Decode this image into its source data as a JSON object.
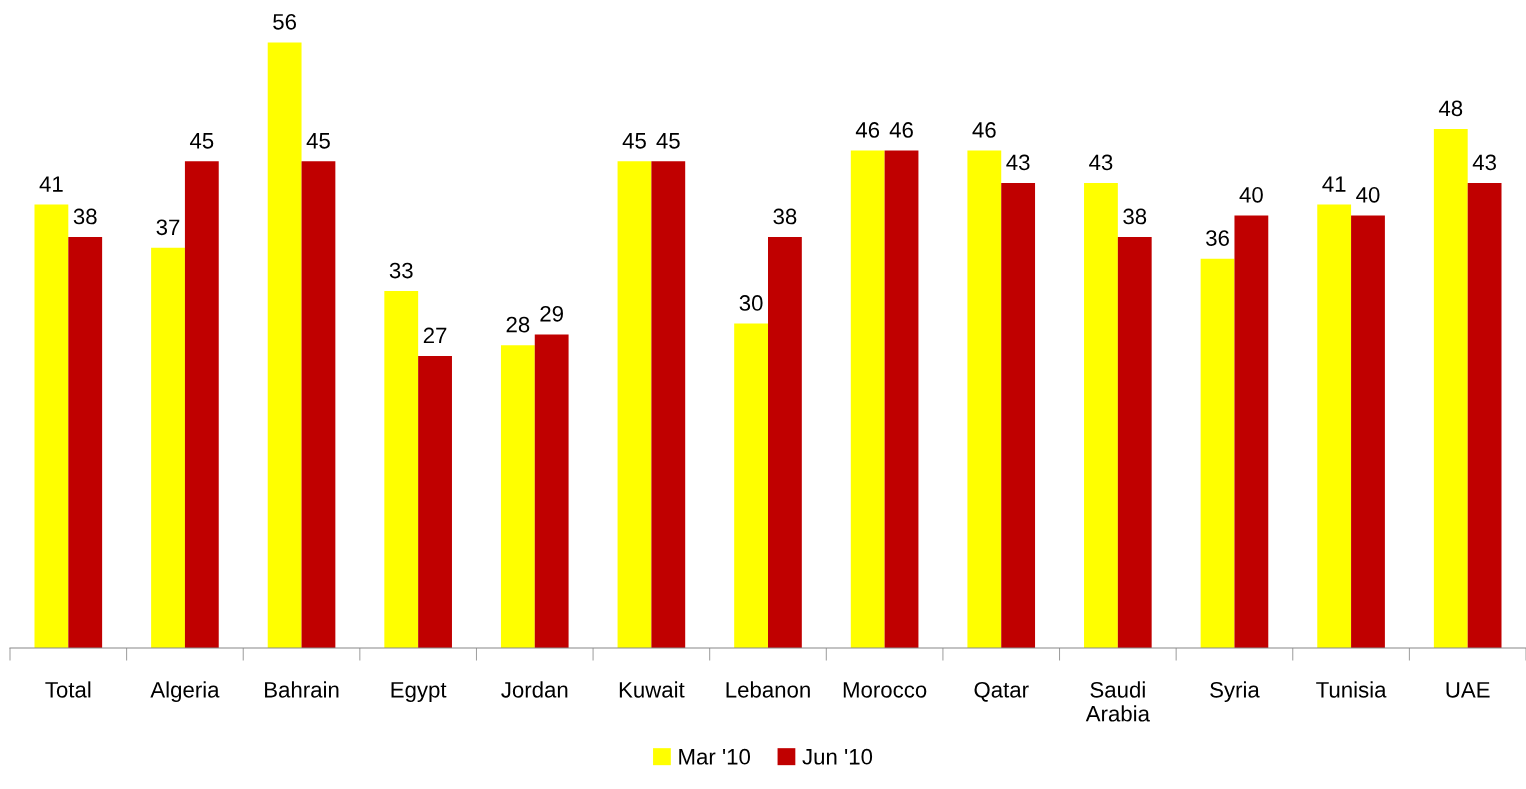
{
  "chart_data": {
    "type": "bar",
    "categories": [
      "Total",
      "Algeria",
      "Bahrain",
      "Egypt",
      "Jordan",
      "Kuwait",
      "Lebanon",
      "Morocco",
      "Qatar",
      "Saudi\nArabia",
      "Syria",
      "Tunisia",
      "UAE"
    ],
    "series": [
      {
        "name": "Mar '10",
        "color": "#ffff00",
        "values": [
          41,
          37,
          56,
          33,
          28,
          45,
          30,
          46,
          46,
          43,
          36,
          41,
          48
        ]
      },
      {
        "name": "Jun '10",
        "color": "#c00000",
        "values": [
          38,
          45,
          45,
          27,
          29,
          45,
          38,
          46,
          43,
          38,
          40,
          40,
          43
        ]
      }
    ],
    "data_labels": true,
    "legend": "bottom",
    "grid": false
  }
}
